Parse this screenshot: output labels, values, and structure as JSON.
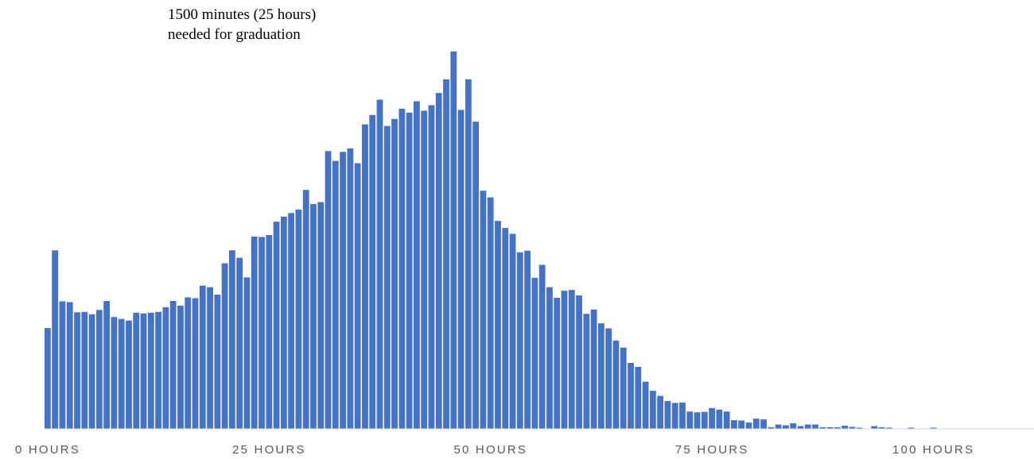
{
  "chart_data": {
    "type": "bar",
    "title": "",
    "xlabel": "",
    "ylabel": "",
    "x_axis_ticks": [
      "0 HOURS",
      "25 HOURS",
      "50 HOURS",
      "75 HOURS",
      "100 HOURS"
    ],
    "annotation": [
      "1500 minutes (25 hours)",
      "needed for graduation"
    ],
    "bin_width_hours": 0.8333,
    "values": [
      0.257,
      0.455,
      0.325,
      0.323,
      0.297,
      0.298,
      0.292,
      0.303,
      0.326,
      0.285,
      0.28,
      0.276,
      0.296,
      0.294,
      0.296,
      0.298,
      0.31,
      0.326,
      0.314,
      0.335,
      0.333,
      0.365,
      0.361,
      0.342,
      0.422,
      0.455,
      0.436,
      0.386,
      0.49,
      0.489,
      0.494,
      0.528,
      0.541,
      0.55,
      0.559,
      0.609,
      0.573,
      0.578,
      0.708,
      0.683,
      0.706,
      0.715,
      0.677,
      0.776,
      0.8,
      0.839,
      0.772,
      0.79,
      0.816,
      0.806,
      0.835,
      0.811,
      0.825,
      0.856,
      0.891,
      0.962,
      0.813,
      0.891,
      0.783,
      0.607,
      0.59,
      0.53,
      0.512,
      0.497,
      0.45,
      0.454,
      0.385,
      0.418,
      0.361,
      0.334,
      0.352,
      0.354,
      0.34,
      0.293,
      0.304,
      0.269,
      0.256,
      0.225,
      0.207,
      0.168,
      0.158,
      0.12,
      0.097,
      0.084,
      0.071,
      0.066,
      0.067,
      0.044,
      0.042,
      0.043,
      0.053,
      0.049,
      0.044,
      0.022,
      0.021,
      0.016,
      0.026,
      0.024,
      0.004,
      0.011,
      0.009,
      0.014,
      0.007,
      0.011,
      0.011,
      0.004,
      0.004,
      0.004,
      0.008,
      0.005,
      0.003,
      0.0,
      0.007,
      0.004,
      0.003,
      0.0,
      0.0,
      0.003,
      0.0,
      0.0,
      0.003,
      0.0,
      0.0,
      0.0,
      0.0,
      0.0,
      0.0,
      0.0,
      0.0
    ],
    "grid": false,
    "legend": "none",
    "bar_color": "#4472C4",
    "axis_color": "#d9d9d9",
    "tick_label_color": "#595959"
  }
}
